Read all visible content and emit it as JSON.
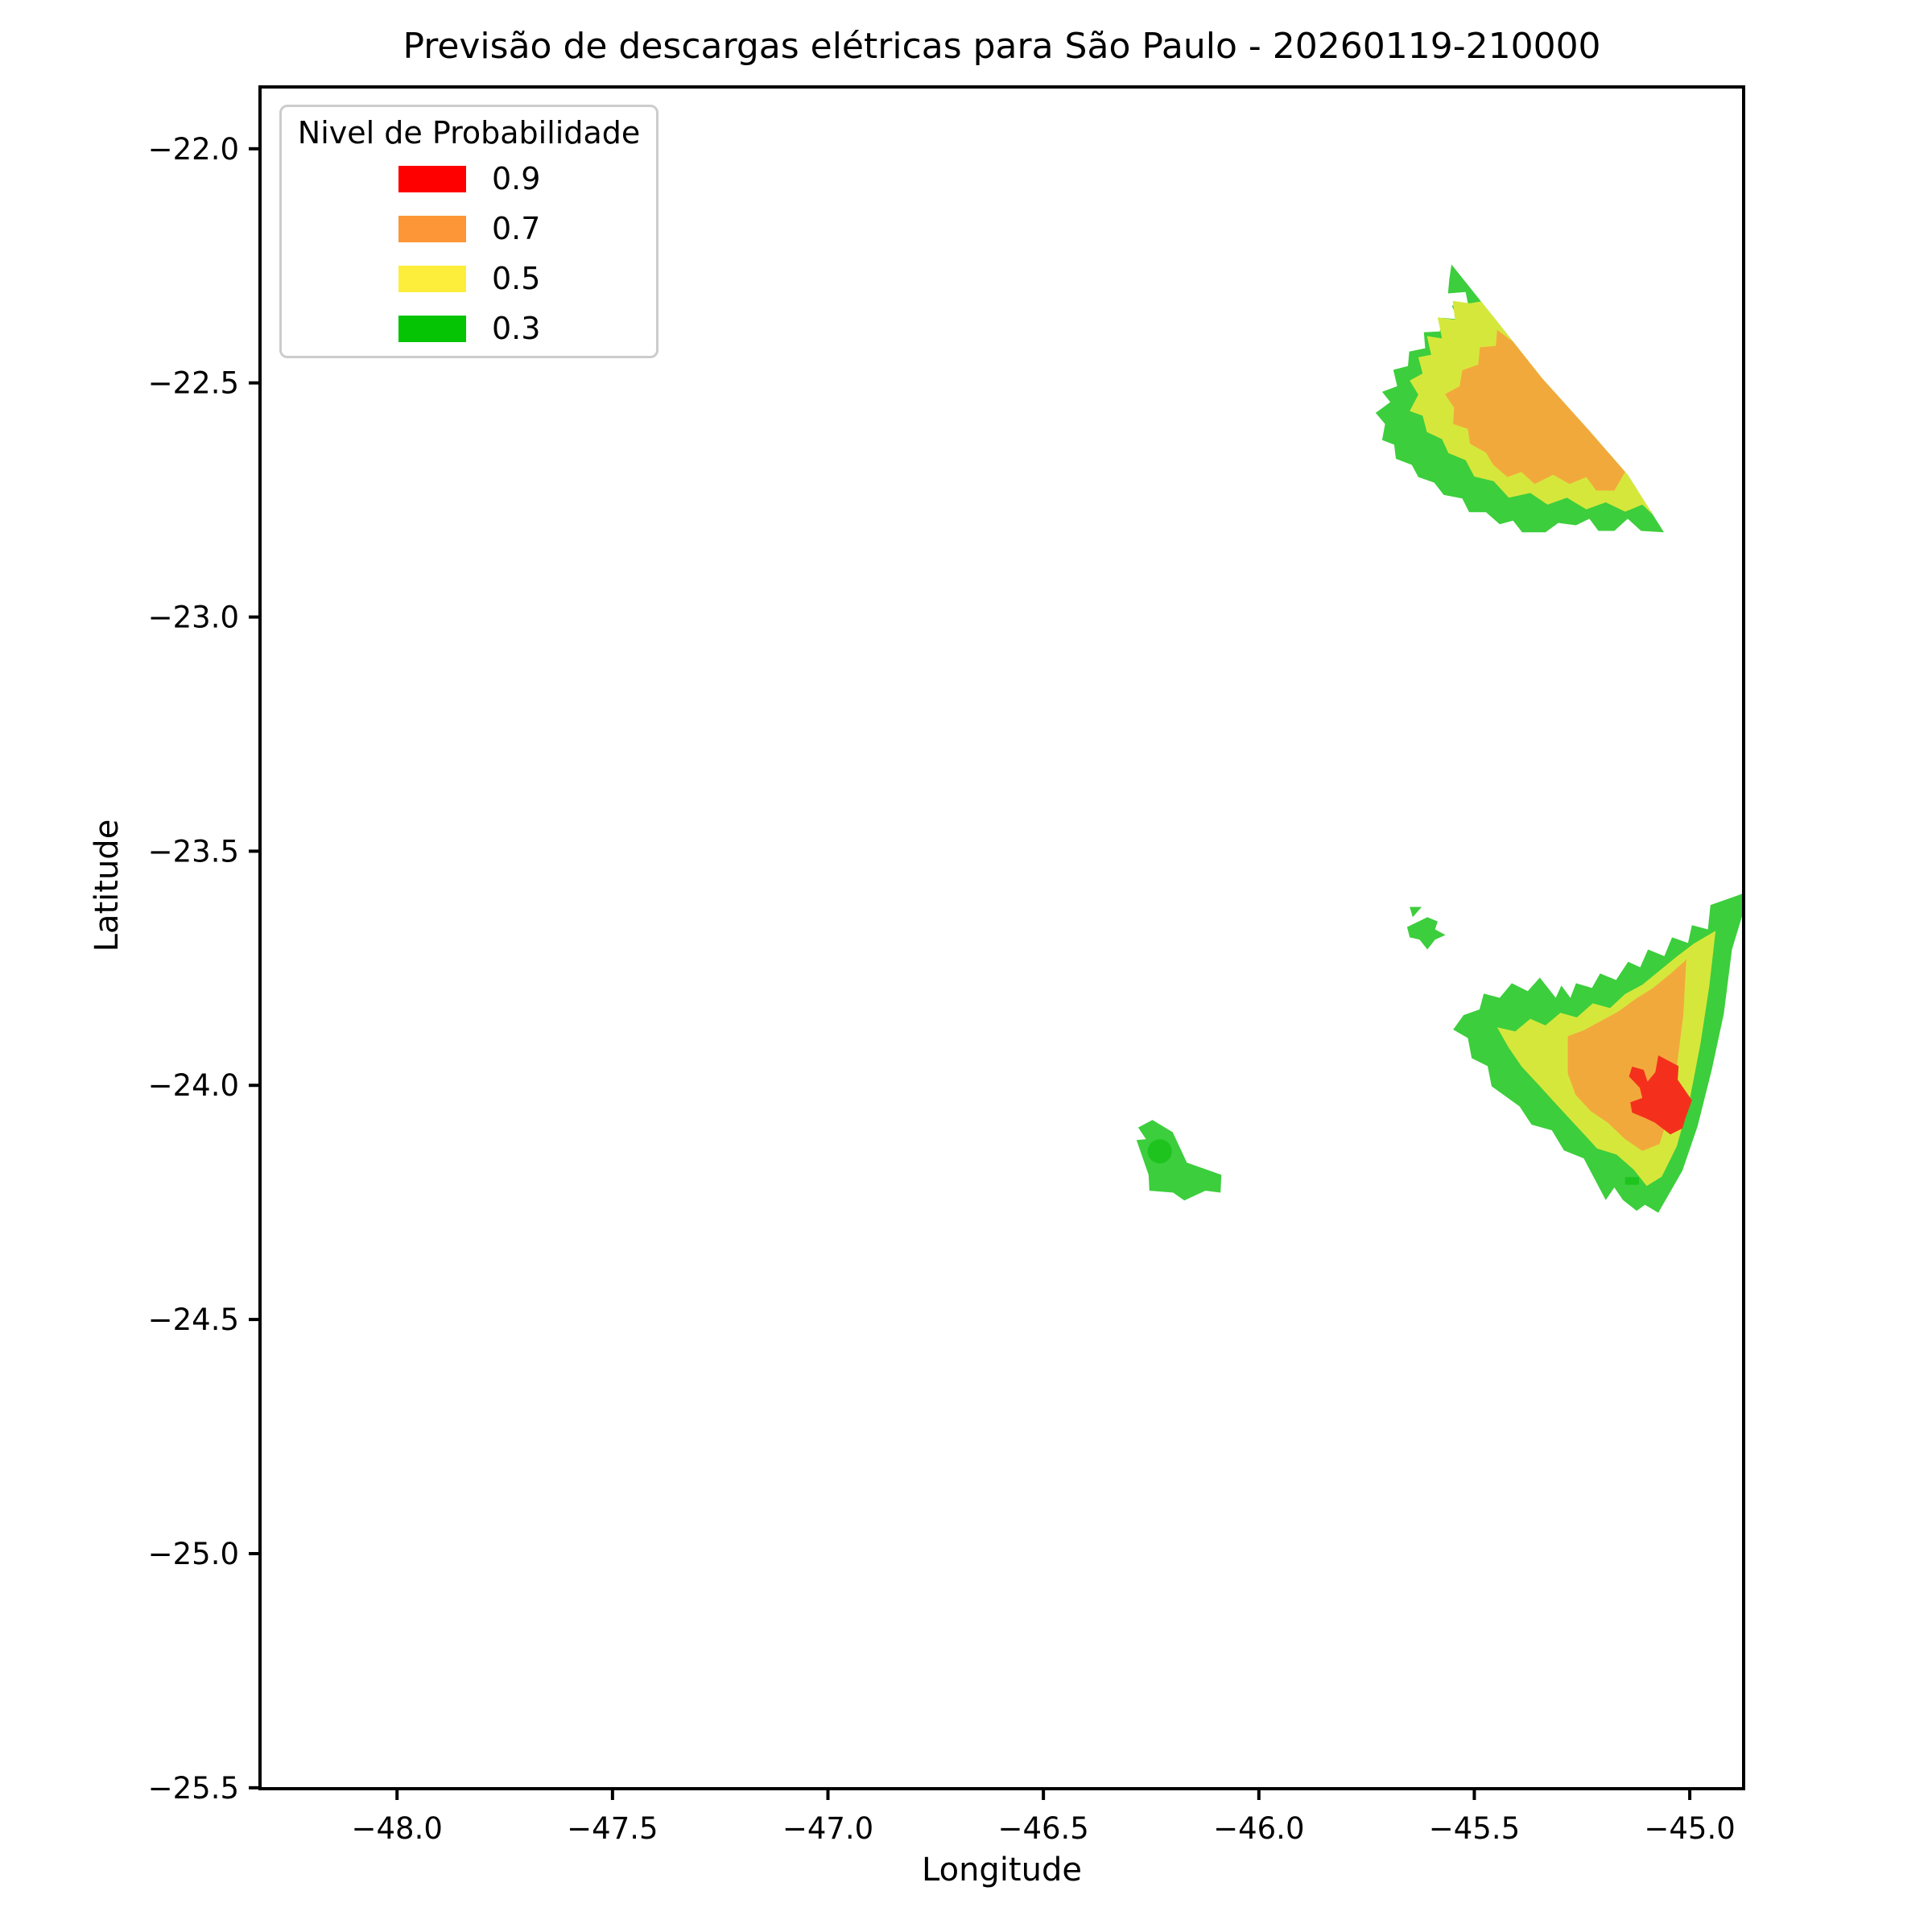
{
  "figure": {
    "title": "Previsão de descargas elétricas para São Paulo - 20260119-210000",
    "xlabel": "Longitude",
    "ylabel": "Latitude"
  },
  "legend": {
    "title": "Nivel de Probabilidade",
    "entries": [
      {
        "label": "0.9",
        "color": "#FF0000"
      },
      {
        "label": "0.7",
        "color": "#FD9636"
      },
      {
        "label": "0.5",
        "color": "#FDEE3B"
      },
      {
        "label": "0.3",
        "color": "#04C404"
      }
    ]
  },
  "chart_data": {
    "type": "contour",
    "title": "Previsão de descargas elétricas para São Paulo - 20260119-210000",
    "xlabel": "Longitude",
    "ylabel": "Latitude",
    "xlim": [
      -48.318,
      -44.875
    ],
    "ylim": [
      -25.502,
      -21.868
    ],
    "xticks": [
      -48.0,
      -47.5,
      -47.0,
      -46.5,
      -46.0,
      -45.5,
      -45.0
    ],
    "xtick_labels": [
      "−48.0",
      "−47.5",
      "−47.0",
      "−46.5",
      "−46.0",
      "−45.5",
      "−45.0"
    ],
    "yticks": [
      -22.0,
      -22.5,
      -23.0,
      -23.5,
      -24.0,
      -24.5,
      -25.0,
      -25.5
    ],
    "ytick_labels": [
      "−22.0",
      "−22.5",
      "−23.0",
      "−23.5",
      "−24.0",
      "−24.5",
      "−25.0",
      "−25.5"
    ],
    "grid": false,
    "legend_position": "upper left",
    "levels": [
      0.3,
      0.5,
      0.7,
      0.9
    ],
    "fill_colors": {
      "green": "#3CCE3C",
      "yellow": "#D6E73C",
      "orange": "#F2A93C",
      "red": "#F4301C",
      "green_overlap": "#1EC31E"
    },
    "regions": [
      {
        "name": "north-storm-p30",
        "level": 0.3,
        "color": "green",
        "points": [
          [
            -45.553,
            -22.247
          ],
          [
            -45.447,
            -22.369
          ],
          [
            -45.343,
            -22.49
          ],
          [
            -45.237,
            -22.598
          ],
          [
            -45.144,
            -22.696
          ],
          [
            -45.06,
            -22.819
          ],
          [
            -45.113,
            -22.816
          ],
          [
            -45.144,
            -22.79
          ],
          [
            -45.175,
            -22.816
          ],
          [
            -45.212,
            -22.816
          ],
          [
            -45.233,
            -22.79
          ],
          [
            -45.264,
            -22.804
          ],
          [
            -45.305,
            -22.799
          ],
          [
            -45.335,
            -22.819
          ],
          [
            -45.389,
            -22.819
          ],
          [
            -45.41,
            -22.794
          ],
          [
            -45.441,
            -22.802
          ],
          [
            -45.473,
            -22.776
          ],
          [
            -45.512,
            -22.776
          ],
          [
            -45.528,
            -22.747
          ],
          [
            -45.571,
            -22.739
          ],
          [
            -45.593,
            -22.713
          ],
          [
            -45.63,
            -22.701
          ],
          [
            -45.645,
            -22.675
          ],
          [
            -45.682,
            -22.662
          ],
          [
            -45.686,
            -22.632
          ],
          [
            -45.714,
            -22.622
          ],
          [
            -45.707,
            -22.588
          ],
          [
            -45.729,
            -22.564
          ],
          [
            -45.695,
            -22.541
          ],
          [
            -45.714,
            -22.519
          ],
          [
            -45.679,
            -22.507
          ],
          [
            -45.688,
            -22.472
          ],
          [
            -45.654,
            -22.464
          ],
          [
            -45.651,
            -22.433
          ],
          [
            -45.614,
            -22.426
          ],
          [
            -45.617,
            -22.392
          ],
          [
            -45.58,
            -22.39
          ],
          [
            -45.576,
            -22.361
          ],
          [
            -45.539,
            -22.364
          ],
          [
            -45.552,
            -22.335
          ],
          [
            -45.515,
            -22.33
          ],
          [
            -45.52,
            -22.306
          ],
          [
            -45.561,
            -22.309
          ],
          [
            -45.558,
            -22.278
          ]
        ]
      },
      {
        "name": "north-storm-p50",
        "level": 0.5,
        "color": "yellow",
        "points": [
          [
            -45.484,
            -22.326
          ],
          [
            -45.447,
            -22.369
          ],
          [
            -45.343,
            -22.49
          ],
          [
            -45.237,
            -22.598
          ],
          [
            -45.144,
            -22.696
          ],
          [
            -45.085,
            -22.782
          ],
          [
            -45.11,
            -22.76
          ],
          [
            -45.15,
            -22.775
          ],
          [
            -45.195,
            -22.755
          ],
          [
            -45.24,
            -22.77
          ],
          [
            -45.285,
            -22.745
          ],
          [
            -45.33,
            -22.76
          ],
          [
            -45.37,
            -22.735
          ],
          [
            -45.42,
            -22.745
          ],
          [
            -45.455,
            -22.71
          ],
          [
            -45.5,
            -22.7
          ],
          [
            -45.52,
            -22.665
          ],
          [
            -45.56,
            -22.65
          ],
          [
            -45.575,
            -22.62
          ],
          [
            -45.61,
            -22.605
          ],
          [
            -45.62,
            -22.57
          ],
          [
            -45.65,
            -22.56
          ],
          [
            -45.63,
            -22.525
          ],
          [
            -45.65,
            -22.495
          ],
          [
            -45.62,
            -22.48
          ],
          [
            -45.63,
            -22.445
          ],
          [
            -45.6,
            -22.44
          ],
          [
            -45.61,
            -22.4
          ],
          [
            -45.575,
            -22.405
          ],
          [
            -45.585,
            -22.36
          ],
          [
            -45.545,
            -22.365
          ],
          [
            -45.55,
            -22.325
          ],
          [
            -45.51,
            -22.33
          ]
        ]
      },
      {
        "name": "north-storm-p70",
        "level": 0.7,
        "color": "orange",
        "points": [
          [
            -45.41,
            -22.412
          ],
          [
            -45.343,
            -22.49
          ],
          [
            -45.237,
            -22.598
          ],
          [
            -45.15,
            -22.69
          ],
          [
            -45.175,
            -22.73
          ],
          [
            -45.217,
            -22.73
          ],
          [
            -45.24,
            -22.701
          ],
          [
            -45.279,
            -22.716
          ],
          [
            -45.317,
            -22.696
          ],
          [
            -45.36,
            -22.716
          ],
          [
            -45.391,
            -22.69
          ],
          [
            -45.423,
            -22.701
          ],
          [
            -45.456,
            -22.675
          ],
          [
            -45.473,
            -22.649
          ],
          [
            -45.51,
            -22.63
          ],
          [
            -45.515,
            -22.598
          ],
          [
            -45.549,
            -22.588
          ],
          [
            -45.547,
            -22.553
          ],
          [
            -45.568,
            -22.524
          ],
          [
            -45.534,
            -22.507
          ],
          [
            -45.528,
            -22.473
          ],
          [
            -45.491,
            -22.461
          ],
          [
            -45.487,
            -22.424
          ],
          [
            -45.45,
            -22.421
          ],
          [
            -45.447,
            -22.387
          ]
        ]
      },
      {
        "name": "southeast-storm-p30",
        "level": 0.3,
        "color": "green",
        "points": [
          [
            -44.875,
            -23.59
          ],
          [
            -44.875,
            -23.628
          ],
          [
            -44.902,
            -23.71
          ],
          [
            -44.921,
            -23.847
          ],
          [
            -44.949,
            -23.967
          ],
          [
            -44.982,
            -24.088
          ],
          [
            -45.017,
            -24.182
          ],
          [
            -45.073,
            -24.272
          ],
          [
            -45.104,
            -24.255
          ],
          [
            -45.123,
            -24.268
          ],
          [
            -45.155,
            -24.245
          ],
          [
            -45.175,
            -24.218
          ],
          [
            -45.195,
            -24.245
          ],
          [
            -45.246,
            -24.156
          ],
          [
            -45.292,
            -24.139
          ],
          [
            -45.32,
            -24.096
          ],
          [
            -45.367,
            -24.084
          ],
          [
            -45.395,
            -24.045
          ],
          [
            -45.422,
            -24.027
          ],
          [
            -45.46,
            -24.002
          ],
          [
            -45.469,
            -23.959
          ],
          [
            -45.506,
            -23.942
          ],
          [
            -45.515,
            -23.899
          ],
          [
            -45.549,
            -23.881
          ],
          [
            -45.525,
            -23.85
          ],
          [
            -45.488,
            -23.838
          ],
          [
            -45.478,
            -23.804
          ],
          [
            -45.441,
            -23.813
          ],
          [
            -45.413,
            -23.782
          ],
          [
            -45.376,
            -23.799
          ],
          [
            -45.348,
            -23.77
          ],
          [
            -45.311,
            -23.813
          ],
          [
            -45.298,
            -23.787
          ],
          [
            -45.277,
            -23.813
          ],
          [
            -45.264,
            -23.782
          ],
          [
            -45.227,
            -23.792
          ],
          [
            -45.208,
            -23.761
          ],
          [
            -45.171,
            -23.775
          ],
          [
            -45.143,
            -23.736
          ],
          [
            -45.115,
            -23.748
          ],
          [
            -45.097,
            -23.71
          ],
          [
            -45.059,
            -23.724
          ],
          [
            -45.041,
            -23.684
          ],
          [
            -45.004,
            -23.696
          ],
          [
            -44.995,
            -23.658
          ],
          [
            -44.958,
            -23.667
          ],
          [
            -44.952,
            -23.615
          ]
        ]
      },
      {
        "name": "southeast-storm-p50",
        "level": 0.5,
        "color": "yellow",
        "points": [
          [
            -44.94,
            -23.67
          ],
          [
            -44.955,
            -23.79
          ],
          [
            -44.975,
            -23.91
          ],
          [
            -45.0,
            -24.03
          ],
          [
            -45.03,
            -24.13
          ],
          [
            -45.065,
            -24.195
          ],
          [
            -45.1,
            -24.215
          ],
          [
            -45.13,
            -24.18
          ],
          [
            -45.17,
            -24.148
          ],
          [
            -45.215,
            -24.135
          ],
          [
            -45.25,
            -24.1
          ],
          [
            -45.285,
            -24.065
          ],
          [
            -45.32,
            -24.03
          ],
          [
            -45.355,
            -23.995
          ],
          [
            -45.39,
            -23.96
          ],
          [
            -45.42,
            -23.92
          ],
          [
            -45.447,
            -23.876
          ],
          [
            -45.405,
            -23.885
          ],
          [
            -45.37,
            -23.858
          ],
          [
            -45.335,
            -23.872
          ],
          [
            -45.3,
            -23.845
          ],
          [
            -45.262,
            -23.855
          ],
          [
            -45.225,
            -23.825
          ],
          [
            -45.185,
            -23.835
          ],
          [
            -45.15,
            -23.805
          ],
          [
            -45.11,
            -23.785
          ],
          [
            -45.07,
            -23.755
          ],
          [
            -45.03,
            -23.725
          ],
          [
            -44.99,
            -23.697
          ]
        ]
      },
      {
        "name": "southeast-storm-p70",
        "level": 0.7,
        "color": "orange",
        "points": [
          [
            -45.008,
            -23.73
          ],
          [
            -45.015,
            -23.85
          ],
          [
            -45.03,
            -23.96
          ],
          [
            -45.048,
            -24.06
          ],
          [
            -45.07,
            -24.125
          ],
          [
            -45.11,
            -24.14
          ],
          [
            -45.15,
            -24.115
          ],
          [
            -45.19,
            -24.08
          ],
          [
            -45.23,
            -24.055
          ],
          [
            -45.265,
            -24.02
          ],
          [
            -45.283,
            -23.975
          ],
          [
            -45.283,
            -23.93
          ],
          [
            -45.283,
            -23.895
          ],
          [
            -45.245,
            -23.882
          ],
          [
            -45.205,
            -23.862
          ],
          [
            -45.165,
            -23.842
          ],
          [
            -45.125,
            -23.815
          ],
          [
            -45.085,
            -23.792
          ],
          [
            -45.045,
            -23.762
          ],
          [
            -45.012,
            -23.735
          ]
        ]
      },
      {
        "name": "southeast-storm-p90",
        "level": 0.9,
        "color": "red",
        "points": [
          [
            -45.073,
            -23.936
          ],
          [
            -45.026,
            -23.959
          ],
          [
            -45.028,
            -23.988
          ],
          [
            -44.995,
            -24.032
          ],
          [
            -45.01,
            -24.07
          ],
          [
            -45.017,
            -24.092
          ],
          [
            -45.045,
            -24.105
          ],
          [
            -45.082,
            -24.079
          ],
          [
            -45.103,
            -24.07
          ],
          [
            -45.134,
            -24.058
          ],
          [
            -45.138,
            -24.036
          ],
          [
            -45.11,
            -24.027
          ],
          [
            -45.116,
            -24.005
          ],
          [
            -45.141,
            -23.981
          ],
          [
            -45.134,
            -23.96
          ],
          [
            -45.107,
            -23.967
          ],
          [
            -45.098,
            -23.992
          ],
          [
            -45.08,
            -23.972
          ]
        ]
      },
      {
        "name": "west-speck-triangle-p30",
        "level": 0.3,
        "color": "green",
        "points": [
          [
            -45.65,
            -23.619
          ],
          [
            -45.622,
            -23.619
          ],
          [
            -45.643,
            -23.641
          ]
        ]
      },
      {
        "name": "west-speck-star-p30",
        "level": 0.3,
        "color": "green",
        "points": [
          [
            -45.656,
            -23.662
          ],
          [
            -45.609,
            -23.641
          ],
          [
            -45.585,
            -23.65
          ],
          [
            -45.591,
            -23.667
          ],
          [
            -45.567,
            -23.679
          ],
          [
            -45.591,
            -23.689
          ],
          [
            -45.609,
            -23.71
          ],
          [
            -45.627,
            -23.689
          ],
          [
            -45.65,
            -23.684
          ]
        ]
      },
      {
        "name": "central-cell-p30",
        "level": 0.3,
        "color": "green",
        "points": [
          [
            -46.247,
            -24.074
          ],
          [
            -46.2,
            -24.1
          ],
          [
            -46.167,
            -24.165
          ],
          [
            -46.087,
            -24.191
          ],
          [
            -46.089,
            -24.229
          ],
          [
            -46.124,
            -24.225
          ],
          [
            -46.173,
            -24.246
          ],
          [
            -46.199,
            -24.229
          ],
          [
            -46.254,
            -24.225
          ],
          [
            -46.256,
            -24.191
          ],
          [
            -46.284,
            -24.117
          ],
          [
            -46.262,
            -24.115
          ],
          [
            -46.28,
            -24.09
          ]
        ]
      },
      {
        "name": "southeast-inner-dash-p30",
        "level": 0.3,
        "color": "green_overlap",
        "points": [
          [
            -45.15,
            -24.196
          ],
          [
            -45.118,
            -24.196
          ],
          [
            -45.118,
            -24.212
          ],
          [
            -45.15,
            -24.212
          ]
        ]
      }
    ],
    "markers": [
      {
        "name": "central-cell-core-dot",
        "shape": "circle",
        "center": [
          -46.23,
          -24.141
        ],
        "radius_deg": 0.028,
        "color": "green_overlap"
      }
    ]
  }
}
